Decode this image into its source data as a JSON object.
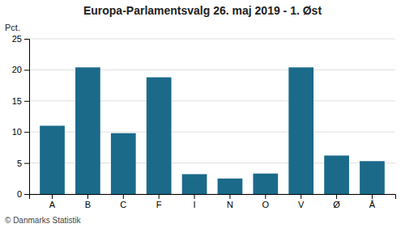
{
  "chart_data": {
    "type": "bar",
    "title": "Europa-Parlamentsvalg 26. maj 2019 - 1. Øst",
    "categories": [
      "A",
      "B",
      "C",
      "F",
      "I",
      "N",
      "O",
      "V",
      "Ø",
      "Å"
    ],
    "values": [
      11.0,
      20.4,
      9.8,
      18.8,
      3.2,
      2.5,
      3.3,
      20.4,
      6.2,
      5.3
    ],
    "color": "#1B6A8A",
    "ylabel": "Pct.",
    "ylim": [
      0,
      25
    ],
    "yticks": [
      0,
      5,
      10,
      15,
      20,
      25
    ],
    "grid": true,
    "footer": "© Danmarks Statistik"
  }
}
